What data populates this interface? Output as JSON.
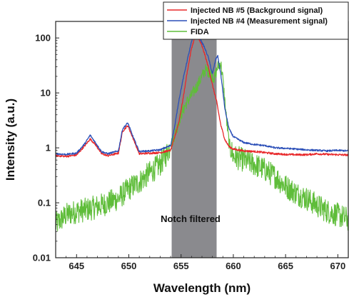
{
  "chart_data": {
    "type": "line",
    "xlabel": "Wavelength (nm)",
    "ylabel": "Intensity (a.u.)",
    "xlim": [
      643,
      671
    ],
    "ylim": [
      0.01,
      200
    ],
    "yscale": "log",
    "xticks": [
      645,
      650,
      655,
      660,
      665,
      670
    ],
    "yticks": [
      0.01,
      0.1,
      1,
      10,
      100
    ],
    "ytick_labels": [
      "0.01",
      "0.1",
      "1",
      "10",
      "100"
    ],
    "grid": false,
    "legend_position": "top-right",
    "shaded_band": {
      "x_range": [
        654.1,
        658.4
      ],
      "color": "#8a8a8e",
      "label": "Notch filtered"
    },
    "series": [
      {
        "name": "Injected NB #5 (Background signal)",
        "color": "#e8282a",
        "x": [
          643,
          644,
          645,
          645.8,
          646.3,
          646.8,
          647.4,
          648,
          649,
          649.4,
          649.9,
          650.4,
          651,
          652,
          653,
          654,
          654.4,
          654.8,
          655.2,
          655.6,
          656,
          656.3,
          656.6,
          656.9,
          657.2,
          657.6,
          658,
          658.4,
          658.8,
          659.2,
          659.6,
          660,
          661,
          662,
          663,
          664,
          665,
          666,
          667,
          668,
          669,
          670,
          671
        ],
        "y": [
          0.72,
          0.7,
          0.74,
          1.1,
          1.45,
          1.15,
          0.78,
          0.72,
          0.8,
          2.0,
          2.55,
          1.5,
          0.78,
          0.8,
          0.82,
          0.9,
          1.6,
          3.0,
          8,
          25,
          65,
          100,
          100,
          80,
          55,
          30,
          14,
          7,
          2.6,
          1.4,
          1.05,
          0.95,
          0.88,
          0.86,
          0.82,
          0.78,
          0.76,
          0.75,
          0.75,
          0.78,
          0.76,
          0.75,
          0.74
        ]
      },
      {
        "name": "Injected NB #4 (Measurement signal)",
        "color": "#2b4fb8",
        "x": [
          643,
          644,
          645,
          645.8,
          646.3,
          646.8,
          647.4,
          648,
          649,
          649.4,
          649.9,
          650.4,
          651,
          652,
          653,
          654,
          654.4,
          654.8,
          655.2,
          655.6,
          656,
          656.3,
          656.6,
          656.9,
          657.2,
          657.6,
          658,
          658.3,
          658.5,
          658.8,
          659.2,
          659.6,
          660,
          661,
          662,
          663,
          664,
          665,
          666,
          667,
          668,
          669,
          670,
          671
        ],
        "y": [
          0.78,
          0.76,
          0.8,
          1.2,
          1.7,
          1.25,
          0.85,
          0.78,
          0.88,
          2.2,
          2.85,
          1.6,
          0.86,
          0.88,
          0.92,
          1.1,
          2.5,
          7.5,
          18,
          40,
          85,
          115,
          112,
          90,
          70,
          45,
          22,
          40,
          48,
          22,
          5,
          2.2,
          1.6,
          1.25,
          1.15,
          1.1,
          1.0,
          0.98,
          0.95,
          0.92,
          0.9,
          0.88,
          0.9,
          0.88
        ]
      },
      {
        "name": "FIDA",
        "color": "#5fbd3a",
        "x": [
          643,
          644,
          645,
          646,
          647,
          648,
          649,
          650,
          651,
          652,
          653,
          653.5,
          654,
          654.5,
          655,
          655.5,
          656,
          656.5,
          657,
          657.3,
          657.6,
          657.9,
          658.2,
          658.5,
          658.8,
          659,
          659.3,
          659.6,
          660,
          661,
          662,
          663,
          664,
          665,
          666,
          667,
          668,
          669,
          670,
          671
        ],
        "y": [
          0.04,
          0.06,
          0.07,
          0.075,
          0.085,
          0.1,
          0.12,
          0.18,
          0.24,
          0.35,
          0.5,
          0.7,
          1.1,
          2.0,
          4.0,
          6.5,
          9,
          13,
          20,
          26,
          25,
          22,
          18,
          30,
          35,
          18,
          4,
          1.2,
          0.7,
          0.6,
          0.5,
          0.4,
          0.3,
          0.2,
          0.15,
          0.12,
          0.09,
          0.07,
          0.06,
          0.05
        ]
      }
    ]
  }
}
